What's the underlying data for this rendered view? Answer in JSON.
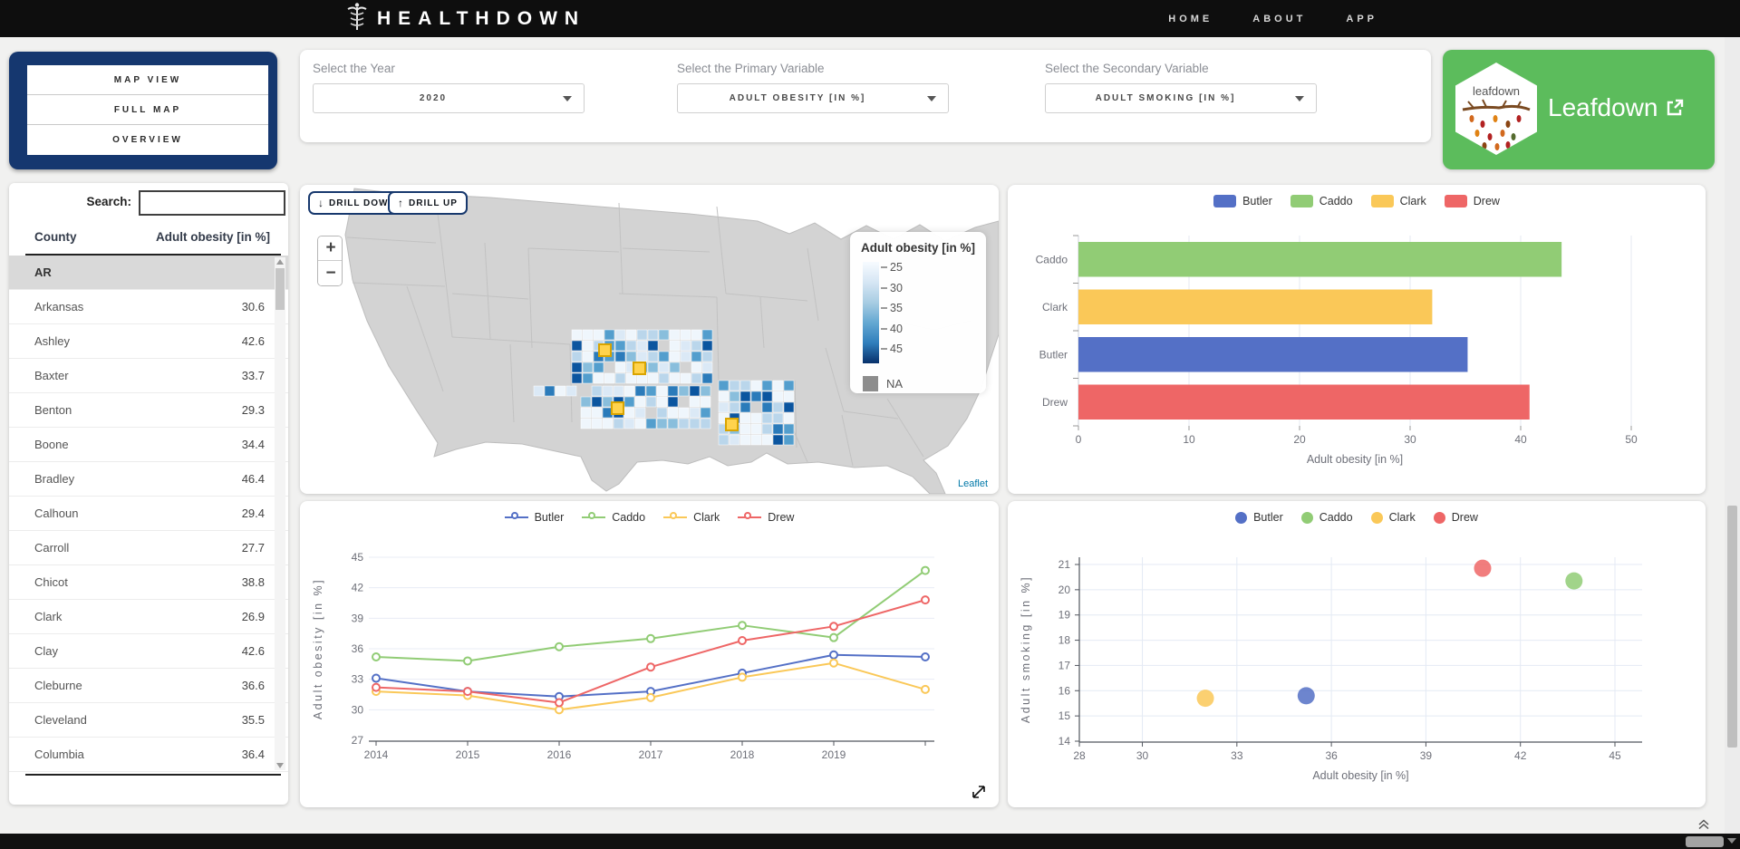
{
  "navbar": {
    "brand": "HEALTHDOWN",
    "links": [
      {
        "label": "HOME"
      },
      {
        "label": "ABOUT"
      },
      {
        "label": "APP"
      }
    ]
  },
  "sidebar": {
    "buttons": [
      {
        "label": "MAP VIEW"
      },
      {
        "label": "FULL MAP"
      },
      {
        "label": "OVERVIEW"
      }
    ]
  },
  "controls": [
    {
      "label": "Select the Year",
      "value": "2020"
    },
    {
      "label": "Select the Primary Variable",
      "value": "ADULT OBESITY [IN %]"
    },
    {
      "label": "Select the Secondary Variable",
      "value": "ADULT SMOKING [IN %]"
    }
  ],
  "leafdown": {
    "logo_text": "leafdown",
    "title": "Leafdown"
  },
  "county_table": {
    "search_label": "Search:",
    "search_value": "",
    "columns": [
      "County",
      "Adult obesity [in %]"
    ],
    "rows": [
      [
        "AR",
        ""
      ],
      [
        "Arkansas",
        "30.6"
      ],
      [
        "Ashley",
        "42.6"
      ],
      [
        "Baxter",
        "33.7"
      ],
      [
        "Benton",
        "29.3"
      ],
      [
        "Boone",
        "34.4"
      ],
      [
        "Bradley",
        "46.4"
      ],
      [
        "Calhoun",
        "29.4"
      ],
      [
        "Carroll",
        "27.7"
      ],
      [
        "Chicot",
        "38.8"
      ],
      [
        "Clark",
        "26.9"
      ],
      [
        "Clay",
        "42.6"
      ],
      [
        "Cleburne",
        "36.6"
      ],
      [
        "Cleveland",
        "35.5"
      ],
      [
        "Columbia",
        "36.4"
      ]
    ]
  },
  "map": {
    "drill_down": {
      "icon": "↓",
      "label": "DRILL DOWN"
    },
    "drill_up": {
      "icon": "↑",
      "label": "DRILL UP"
    },
    "zoom_in": "+",
    "zoom_out": "−",
    "legend": {
      "title": "Adult obesity [in %]",
      "ticks": [
        "25",
        "30",
        "35",
        "40",
        "45"
      ],
      "na_label": "NA"
    },
    "attribution": "Leaflet",
    "choropleth_palette": [
      "#eff6fc",
      "#dbe9f6",
      "#bad6eb",
      "#89bedc",
      "#539ecd",
      "#2b7bba",
      "#0b559f"
    ],
    "highlight_color": "#ffd34d",
    "highlight_border": "#d9a400",
    "land_color": "#d3d3d3",
    "border_color": "#c2c2c2"
  },
  "colors": {
    "accent_navy": "#15376f",
    "leafdown_green": "#5cbc5c",
    "series": {
      "Butler": "#5470c6",
      "Caddo": "#91cc75",
      "Clark": "#fac858",
      "Drew": "#ee6666"
    }
  },
  "chart_data": [
    {
      "type": "bar",
      "orientation": "horizontal",
      "categories": [
        "Caddo",
        "Clark",
        "Butler",
        "Drew"
      ],
      "values": [
        43.7,
        32.0,
        35.2,
        40.8
      ],
      "bar_colors": [
        "#91cc75",
        "#fac858",
        "#5470c6",
        "#ee6666"
      ],
      "legend": [
        {
          "name": "Butler",
          "color": "#5470c6"
        },
        {
          "name": "Caddo",
          "color": "#91cc75"
        },
        {
          "name": "Clark",
          "color": "#fac858"
        },
        {
          "name": "Drew",
          "color": "#ee6666"
        }
      ],
      "xlabel": "Adult obesity [in %]",
      "xlim": [
        0,
        50
      ],
      "xticks": [
        0,
        10,
        20,
        30,
        40,
        50
      ],
      "grid": true,
      "legend_position": "top"
    },
    {
      "type": "line",
      "x": [
        2014,
        2015,
        2016,
        2017,
        2018,
        2019,
        2020
      ],
      "xtick_labels": [
        "2014",
        "2015",
        "2016",
        "2017",
        "2018",
        "2019"
      ],
      "series": [
        {
          "name": "Butler",
          "color": "#5470c6",
          "values": [
            33.1,
            31.8,
            31.3,
            31.8,
            33.6,
            35.4,
            35.2
          ]
        },
        {
          "name": "Caddo",
          "color": "#91cc75",
          "values": [
            35.2,
            34.8,
            36.2,
            37.0,
            38.3,
            37.1,
            43.7
          ]
        },
        {
          "name": "Clark",
          "color": "#fac858",
          "values": [
            31.8,
            31.4,
            30.0,
            31.2,
            33.2,
            34.6,
            32.0
          ]
        },
        {
          "name": "Drew",
          "color": "#ee6666",
          "values": [
            32.2,
            31.8,
            30.7,
            34.2,
            36.8,
            38.2,
            40.8
          ]
        }
      ],
      "legend": [
        {
          "name": "Butler",
          "color": "#5470c6"
        },
        {
          "name": "Caddo",
          "color": "#91cc75"
        },
        {
          "name": "Clark",
          "color": "#fac858"
        },
        {
          "name": "Drew",
          "color": "#ee6666"
        }
      ],
      "ylabel": "Adult obesity [in %]",
      "ylim": [
        27,
        45
      ],
      "yticks": [
        27,
        30,
        33,
        36,
        39,
        42,
        45
      ],
      "grid": true,
      "legend_position": "top"
    },
    {
      "type": "scatter",
      "points": [
        {
          "name": "Butler",
          "x": 35.2,
          "y": 15.8,
          "color": "#5470c6"
        },
        {
          "name": "Caddo",
          "x": 43.7,
          "y": 20.35,
          "color": "#91cc75"
        },
        {
          "name": "Clark",
          "x": 32.0,
          "y": 15.7,
          "color": "#fac858"
        },
        {
          "name": "Drew",
          "x": 40.8,
          "y": 20.85,
          "color": "#ee6666"
        }
      ],
      "legend": [
        {
          "name": "Butler",
          "color": "#5470c6"
        },
        {
          "name": "Caddo",
          "color": "#91cc75"
        },
        {
          "name": "Clark",
          "color": "#fac858"
        },
        {
          "name": "Drew",
          "color": "#ee6666"
        }
      ],
      "xlabel": "Adult obesity [in %]",
      "ylabel": "Adult smoking [in %]",
      "xlim": [
        28,
        45.5
      ],
      "xticks": [
        28,
        30,
        33,
        36,
        39,
        42,
        45
      ],
      "ylim": [
        14,
        21
      ],
      "yticks": [
        14,
        15,
        16,
        17,
        18,
        19,
        20,
        21
      ],
      "grid": true,
      "legend_position": "top"
    }
  ]
}
